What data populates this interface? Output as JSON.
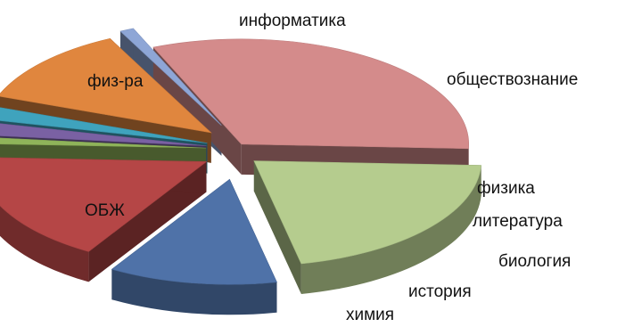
{
  "chart_data": {
    "type": "pie",
    "style": "3d-exploded",
    "title": "",
    "legend": "none",
    "slices": [
      {
        "label": "информатика",
        "value": 12.0,
        "color": "#4f72a8",
        "label_position": "outside-top"
      },
      {
        "label": "обществознание",
        "value": 17.0,
        "color": "#b54646",
        "label_position": "outside-right"
      },
      {
        "label": "физика",
        "value": 1.0,
        "color": "#8fb45a",
        "label_position": "outside-right"
      },
      {
        "label": "литература",
        "value": 2.0,
        "color": "#7a61a3",
        "label_position": "outside-right"
      },
      {
        "label": "биология",
        "value": 2.0,
        "color": "#3fa3bd",
        "label_position": "outside-right"
      },
      {
        "label": "история",
        "value": 12.0,
        "color": "#e0863e",
        "label_position": "outside-bottom"
      },
      {
        "label": "химия",
        "value": 1.0,
        "color": "#8ea6d6",
        "label_position": "outside-bottom"
      },
      {
        "label": "ОБЖ",
        "value": 32.0,
        "color": "#d48b8b",
        "label_position": "inside"
      },
      {
        "label": "физ-ра",
        "value": 21.0,
        "color": "#b5cc8e",
        "label_position": "inside"
      }
    ]
  }
}
